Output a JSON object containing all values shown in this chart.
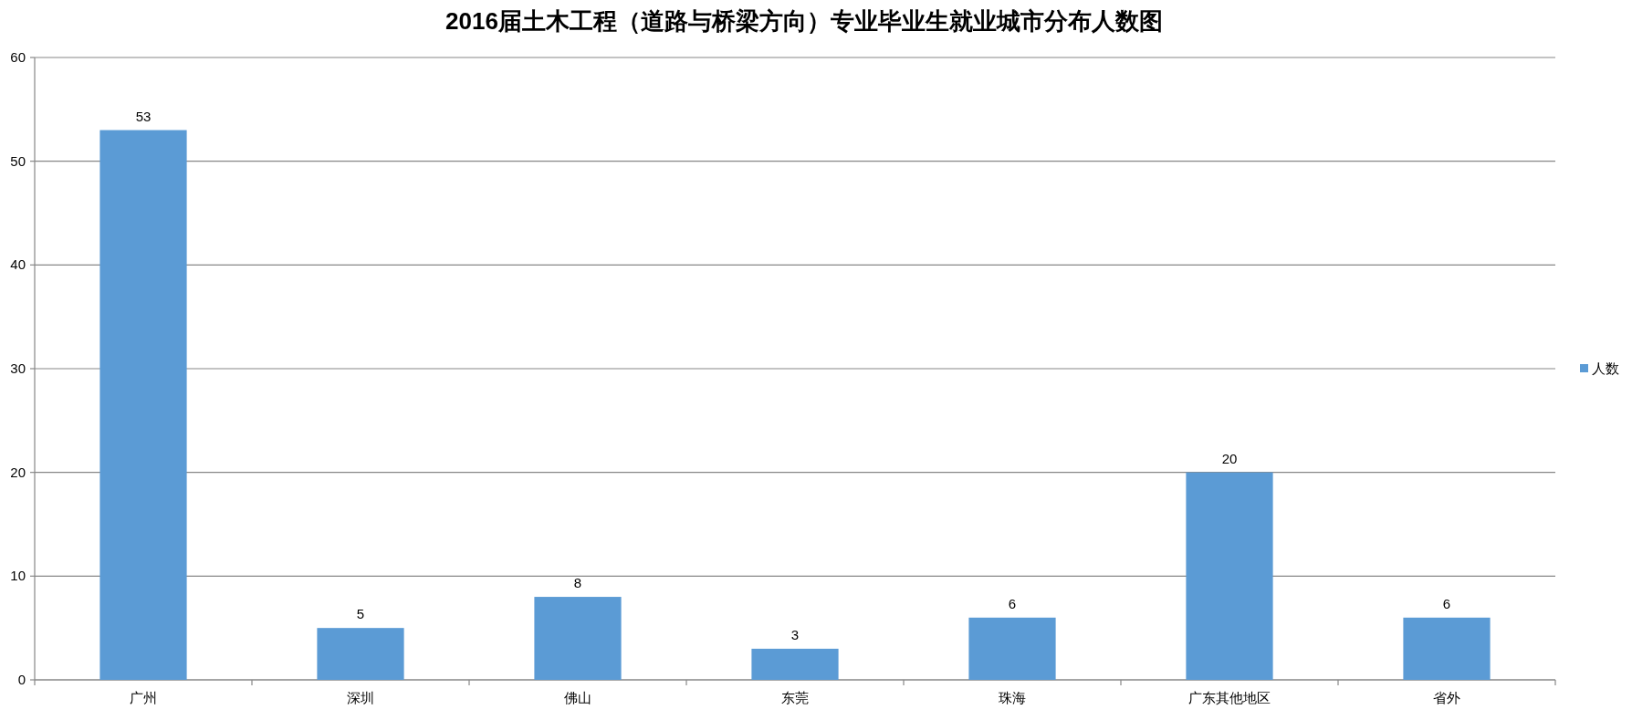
{
  "chart_data": {
    "type": "bar",
    "title": "2016届土木工程（道路与桥梁方向）专业毕业生就业城市分布人数图",
    "categories": [
      "广州",
      "深圳",
      "佛山",
      "东莞",
      "珠海",
      "广东其他地区",
      "省外"
    ],
    "series": [
      {
        "name": "人数",
        "color": "#5b9bd5",
        "values": [
          53,
          5,
          8,
          3,
          6,
          20,
          6
        ]
      }
    ],
    "ylim": [
      0,
      60
    ],
    "yticks": [
      0,
      10,
      20,
      30,
      40,
      50,
      60
    ],
    "grid": "y",
    "legend": "right",
    "data_labels": true
  }
}
